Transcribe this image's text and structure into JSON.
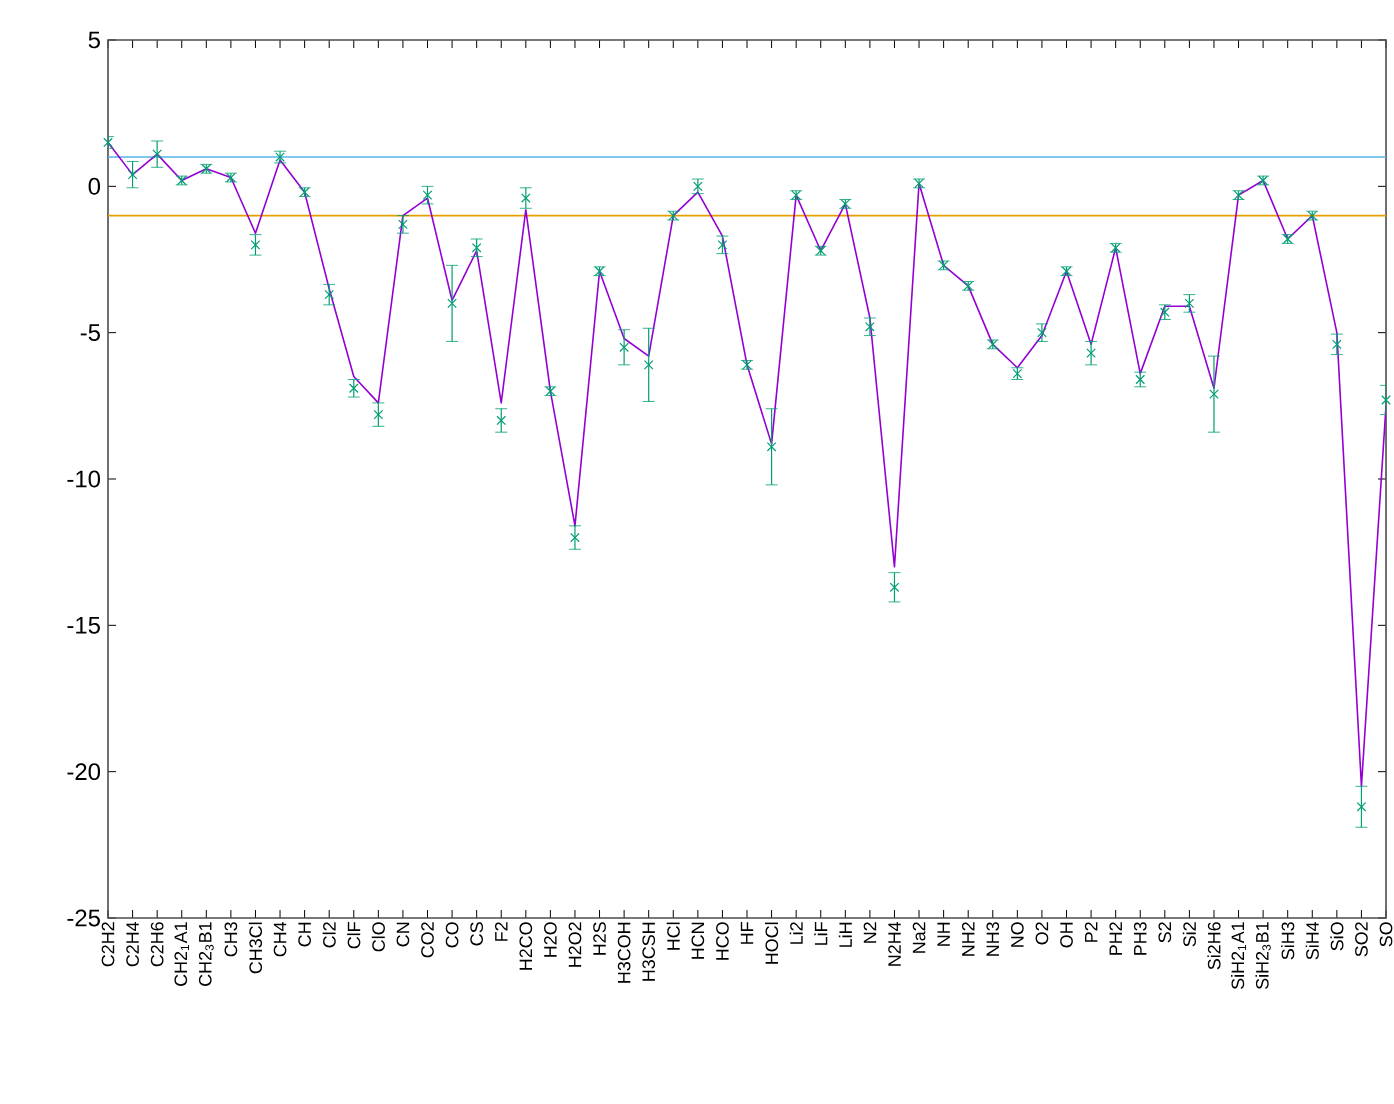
{
  "chart_data": {
    "type": "line",
    "categories": [
      "C2H2",
      "C2H4",
      "C2H6",
      "CH2$_{1}$A1",
      "CH2$_{3}$B1",
      "CH3",
      "CH3Cl",
      "CH4",
      "CH",
      "Cl2",
      "ClF",
      "ClO",
      "CN",
      "CO2",
      "CO",
      "CS",
      "F2",
      "H2CO",
      "H2O",
      "H2O2",
      "H2S",
      "H3COH",
      "H3CSH",
      "HCl",
      "HCN",
      "HCO",
      "HF",
      "HOCl",
      "Li2",
      "LiF",
      "LiH",
      "N2",
      "N2H4",
      "Na2",
      "NH",
      "NH2",
      "NH3",
      "NO",
      "O2",
      "OH",
      "P2",
      "PH2",
      "PH3",
      "S2",
      "Si2",
      "Si2H6",
      "SiH2$_{1}$A1",
      "SiH2$_{3}$B1",
      "SiH3",
      "SiH4",
      "SiO",
      "SO2",
      "SO"
    ],
    "series": [
      {
        "color": "#9400d3",
        "marker": "none",
        "values": [
          1.5,
          0.4,
          1.1,
          0.2,
          0.6,
          0.3,
          -1.6,
          0.9,
          -0.2,
          -3.5,
          -6.5,
          -7.4,
          -1.0,
          -0.4,
          -3.9,
          -2.2,
          -7.4,
          -0.8,
          -7.0,
          -11.6,
          -2.9,
          -5.2,
          -5.8,
          -1.0,
          -0.2,
          -1.7,
          -6.1,
          -8.8,
          -0.3,
          -2.2,
          -0.6,
          -4.5,
          -13.0,
          0.1,
          -2.7,
          -3.4,
          -5.4,
          -6.2,
          -5.1,
          -2.9,
          -5.4,
          -2.1,
          -6.4,
          -4.1,
          -4.1,
          -6.9,
          -0.3,
          0.2,
          -1.8,
          -1.0,
          -5.0,
          -20.5,
          -7.5
        ]
      },
      {
        "type": "scatter",
        "color": "#009e73",
        "marker": "cross",
        "values": [
          1.5,
          0.4,
          1.1,
          0.2,
          0.6,
          0.3,
          -2.0,
          1.0,
          -0.2,
          -3.7,
          -6.9,
          -7.8,
          -1.3,
          -0.3,
          -4.0,
          -2.1,
          -8.0,
          -0.4,
          -7.0,
          -12.0,
          -2.9,
          -5.5,
          -6.1,
          -1.0,
          0.0,
          -2.0,
          -6.1,
          -8.9,
          -0.3,
          -2.2,
          -0.6,
          -4.8,
          -13.7,
          0.1,
          -2.7,
          -3.4,
          -5.4,
          -6.4,
          -5.0,
          -2.9,
          -5.7,
          -2.1,
          -6.6,
          -4.3,
          -4.0,
          -7.1,
          -0.3,
          0.2,
          -1.8,
          -1.0,
          -5.4,
          -21.2,
          -7.3
        ],
        "errors": [
          0.2,
          0.45,
          0.45,
          0.15,
          0.15,
          0.15,
          0.35,
          0.2,
          0.15,
          0.35,
          0.3,
          0.4,
          0.3,
          0.3,
          1.3,
          0.3,
          0.4,
          0.35,
          0.15,
          0.4,
          0.15,
          0.6,
          1.25,
          0.15,
          0.25,
          0.3,
          0.15,
          1.3,
          0.15,
          0.15,
          0.15,
          0.3,
          0.5,
          0.15,
          0.15,
          0.15,
          0.15,
          0.2,
          0.3,
          0.15,
          0.4,
          0.15,
          0.25,
          0.25,
          0.3,
          1.3,
          0.15,
          0.15,
          0.15,
          0.15,
          0.35,
          0.7,
          0.5
        ]
      }
    ],
    "ylim": [
      -25,
      5
    ],
    "yticks": [
      -25,
      -20,
      -15,
      -10,
      -5,
      0,
      5
    ],
    "ref_lines": [
      {
        "axis": "y",
        "value": 1,
        "color": "#56b4e9"
      },
      {
        "axis": "y",
        "value": -1,
        "color": "#e69f00"
      }
    ]
  }
}
